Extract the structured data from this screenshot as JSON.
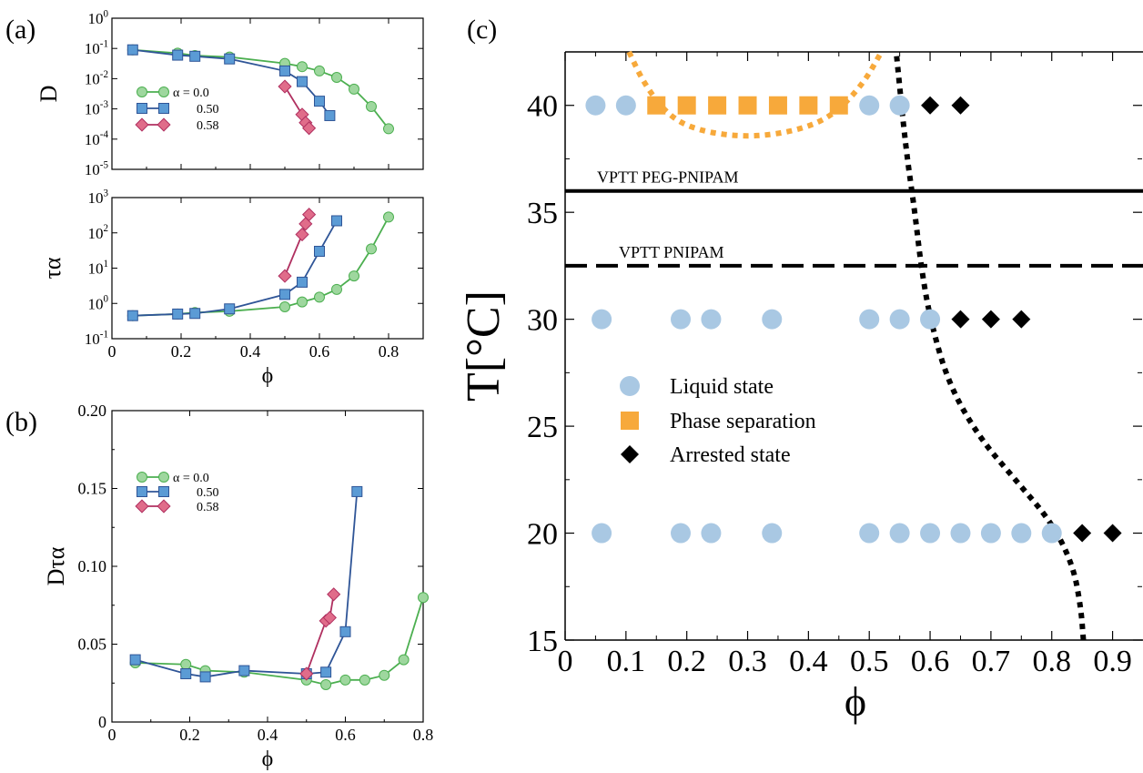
{
  "colors": {
    "green_fill": "#9ed79e",
    "green_line": "#4caf50",
    "blue_fill": "#5b9bd5",
    "blue_line": "#2f5597",
    "red_fill": "#e06c8a",
    "red_line": "#b03060",
    "light_blue": "#a9c8e3",
    "orange": "#f7a93b",
    "black": "#000000"
  },
  "chart_data": [
    {
      "id": "a-top",
      "type": "line",
      "panel_label": "(a)",
      "ylabel": "D",
      "xlabel": "",
      "y_scale": "log",
      "xlim": [
        0,
        0.9
      ],
      "ylim_exp": [
        -5,
        0
      ],
      "x_ticks": [
        "0",
        "0.2",
        "0.4",
        "0.6",
        "0.8"
      ],
      "y_ticks": [
        {
          "exp": 0,
          "text": "10",
          "sup": "0"
        },
        {
          "exp": -1,
          "text": "10",
          "sup": "-1"
        },
        {
          "exp": -2,
          "text": "10",
          "sup": "-2"
        },
        {
          "exp": -3,
          "text": "10",
          "sup": "-3"
        },
        {
          "exp": -4,
          "text": "10",
          "sup": "-4"
        },
        {
          "exp": -5,
          "text": "10",
          "sup": "-5"
        }
      ],
      "legend": [
        "α = 0.0",
        "0.50",
        "0.58"
      ],
      "legend_position": "left-middle",
      "series": [
        {
          "name": "α = 0.0",
          "marker": "circle",
          "color": "green",
          "x": [
            0.06,
            0.19,
            0.24,
            0.34,
            0.5,
            0.55,
            0.6,
            0.65,
            0.7,
            0.75,
            0.8
          ],
          "y": [
            0.09,
            0.07,
            0.058,
            0.052,
            0.032,
            0.025,
            0.018,
            0.011,
            0.0045,
            0.0012,
            0.00022
          ]
        },
        {
          "name": "0.50",
          "marker": "square",
          "color": "blue",
          "x": [
            0.06,
            0.19,
            0.24,
            0.34,
            0.5,
            0.55,
            0.6,
            0.63
          ],
          "y": [
            0.09,
            0.06,
            0.055,
            0.045,
            0.018,
            0.008,
            0.0018,
            0.0006
          ]
        },
        {
          "name": "0.58",
          "marker": "diamond",
          "color": "red",
          "x": [
            0.5,
            0.55,
            0.56,
            0.57
          ],
          "y": [
            0.0055,
            0.00065,
            0.00035,
            0.00023
          ]
        }
      ]
    },
    {
      "id": "a-bottom",
      "type": "line",
      "panel_label": "",
      "ylabel": "τα",
      "xlabel": "ϕ",
      "y_scale": "log",
      "xlim": [
        0,
        0.9
      ],
      "ylim_exp": [
        -1,
        3
      ],
      "x_ticks": [
        "0",
        "0.2",
        "0.4",
        "0.6",
        "0.8"
      ],
      "y_ticks": [
        {
          "exp": 3,
          "text": "10",
          "sup": "3"
        },
        {
          "exp": 2,
          "text": "10",
          "sup": "2"
        },
        {
          "exp": 1,
          "text": "10",
          "sup": "1"
        },
        {
          "exp": 0,
          "text": "10",
          "sup": "0"
        },
        {
          "exp": -1,
          "text": "10",
          "sup": "-1"
        }
      ],
      "series": [
        {
          "name": "α = 0.0",
          "marker": "circle",
          "color": "green",
          "x": [
            0.06,
            0.19,
            0.24,
            0.34,
            0.5,
            0.55,
            0.6,
            0.65,
            0.7,
            0.75,
            0.8
          ],
          "y": [
            0.45,
            0.5,
            0.55,
            0.6,
            0.8,
            1.1,
            1.5,
            2.5,
            6,
            35,
            280
          ]
        },
        {
          "name": "0.50",
          "marker": "square",
          "color": "blue",
          "x": [
            0.06,
            0.19,
            0.24,
            0.34,
            0.5,
            0.55,
            0.6,
            0.65
          ],
          "y": [
            0.45,
            0.5,
            0.52,
            0.7,
            1.8,
            4,
            30,
            220
          ]
        },
        {
          "name": "0.58",
          "marker": "diamond",
          "color": "red",
          "x": [
            0.5,
            0.55,
            0.56,
            0.57
          ],
          "y": [
            6,
            90,
            180,
            330
          ]
        }
      ]
    },
    {
      "id": "b",
      "type": "line",
      "panel_label": "(b)",
      "ylabel": "Dτα",
      "xlabel": "ϕ",
      "y_scale": "linear",
      "xlim": [
        0,
        0.8
      ],
      "ylim": [
        0,
        0.2
      ],
      "x_ticks": [
        "0",
        "0.2",
        "0.4",
        "0.6",
        "0.8"
      ],
      "y_ticks": [
        "0",
        "0.05",
        "0.10",
        "0.15",
        "0.20"
      ],
      "legend": [
        "α = 0.0",
        "0.50",
        "0.58"
      ],
      "legend_position": "top-left",
      "series": [
        {
          "name": "α = 0.0",
          "marker": "circle",
          "color": "green",
          "x": [
            0.06,
            0.19,
            0.24,
            0.34,
            0.5,
            0.55,
            0.6,
            0.65,
            0.7,
            0.75,
            0.8
          ],
          "y": [
            0.038,
            0.037,
            0.033,
            0.032,
            0.027,
            0.024,
            0.027,
            0.027,
            0.03,
            0.04,
            0.08
          ]
        },
        {
          "name": "0.50",
          "marker": "square",
          "color": "blue",
          "x": [
            0.06,
            0.19,
            0.24,
            0.34,
            0.5,
            0.55,
            0.6,
            0.63
          ],
          "y": [
            0.04,
            0.031,
            0.029,
            0.033,
            0.031,
            0.032,
            0.058,
            0.148
          ]
        },
        {
          "name": "0.58",
          "marker": "diamond",
          "color": "red",
          "x": [
            0.5,
            0.55,
            0.56,
            0.57
          ],
          "y": [
            0.031,
            0.065,
            0.067,
            0.082
          ]
        }
      ]
    },
    {
      "id": "c",
      "type": "scatter",
      "panel_label": "(c)",
      "ylabel": "T[°C]",
      "xlabel": "ϕ",
      "xlim": [
        0,
        0.95
      ],
      "ylim": [
        15,
        42.5
      ],
      "x_ticks": [
        "0",
        "0.1",
        "0.2",
        "0.3",
        "0.4",
        "0.5",
        "0.6",
        "0.7",
        "0.8",
        "0.9"
      ],
      "y_ticks": [
        "15",
        "20",
        "25",
        "30",
        "35",
        "40"
      ],
      "annotations": [
        {
          "text": "VPTT PEG-PNIPAM",
          "y": 36,
          "style": "solid"
        },
        {
          "text": "VPTT PNIPAM",
          "y": 32.5,
          "style": "dashed"
        }
      ],
      "legend": [
        "Liquid state",
        "Phase separation",
        "Arrested state"
      ],
      "legend_position": "center-left",
      "series": [
        {
          "name": "Liquid state",
          "marker": "circle",
          "color": "light_blue",
          "points": [
            [
              0.05,
              40
            ],
            [
              0.1,
              40
            ],
            [
              0.5,
              40
            ],
            [
              0.55,
              40
            ],
            [
              0.06,
              30
            ],
            [
              0.19,
              30
            ],
            [
              0.24,
              30
            ],
            [
              0.34,
              30
            ],
            [
              0.5,
              30
            ],
            [
              0.55,
              30
            ],
            [
              0.6,
              30
            ],
            [
              0.06,
              20
            ],
            [
              0.19,
              20
            ],
            [
              0.24,
              20
            ],
            [
              0.34,
              20
            ],
            [
              0.5,
              20
            ],
            [
              0.55,
              20
            ],
            [
              0.6,
              20
            ],
            [
              0.65,
              20
            ],
            [
              0.7,
              20
            ],
            [
              0.75,
              20
            ],
            [
              0.8,
              20
            ]
          ]
        },
        {
          "name": "Phase separation",
          "marker": "square",
          "color": "orange",
          "points": [
            [
              0.15,
              40
            ],
            [
              0.2,
              40
            ],
            [
              0.25,
              40
            ],
            [
              0.3,
              40
            ],
            [
              0.35,
              40
            ],
            [
              0.4,
              40
            ],
            [
              0.45,
              40
            ]
          ]
        },
        {
          "name": "Arrested state",
          "marker": "diamond",
          "color": "black",
          "points": [
            [
              0.6,
              40
            ],
            [
              0.65,
              40
            ],
            [
              0.65,
              30
            ],
            [
              0.7,
              30
            ],
            [
              0.75,
              30
            ],
            [
              0.85,
              20
            ],
            [
              0.9,
              20
            ]
          ]
        }
      ],
      "curves": [
        {
          "kind": "arrest-line",
          "style": "dotted",
          "color": "black",
          "points": [
            [
              0.545,
              42.3
            ],
            [
              0.56,
              38
            ],
            [
              0.575,
              35
            ],
            [
              0.585,
              32.5
            ],
            [
              0.6,
              30
            ],
            [
              0.63,
              27
            ],
            [
              0.68,
              24.5
            ],
            [
              0.74,
              22.5
            ],
            [
              0.8,
              20.5
            ],
            [
              0.835,
              18.5
            ],
            [
              0.848,
              16.5
            ],
            [
              0.852,
              15
            ]
          ]
        },
        {
          "kind": "coexistence",
          "style": "dotted",
          "color": "orange",
          "points": [
            [
              0.105,
              42.5
            ],
            [
              0.13,
              41
            ],
            [
              0.17,
              39.5
            ],
            [
              0.22,
              38.8
            ],
            [
              0.3,
              38.5
            ],
            [
              0.38,
              38.8
            ],
            [
              0.44,
              39.5
            ],
            [
              0.49,
              41
            ],
            [
              0.52,
              42.5
            ]
          ]
        }
      ]
    }
  ]
}
